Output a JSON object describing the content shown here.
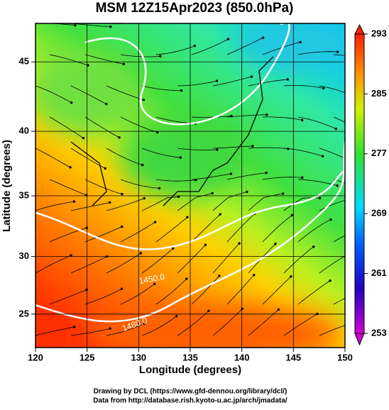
{
  "title": "MSM 12Z15Apr2023 (850.0hPa)",
  "map": {
    "xlabel": "Longitude (degrees)",
    "ylabel": "Latitude  (degrees)",
    "xlim": [
      120,
      150
    ],
    "ylim": [
      22,
      47.6
    ],
    "xticks": [
      120,
      125,
      130,
      135,
      140,
      145,
      150
    ],
    "yticks": [
      25,
      30,
      35,
      40,
      45
    ],
    "grid": true,
    "contour_labels": [
      "1450.0",
      "1480.0"
    ]
  },
  "colorbar": {
    "lim": [
      253,
      293
    ],
    "ticks": [
      253,
      261,
      269,
      277,
      285,
      293
    ]
  },
  "footer": [
    "Drawing by DCL (https://www.gfd-dennou.org/library/dcl/)",
    "Data from http://database.rish.kyoto-u.ac.jp/arch/jmadata/"
  ]
}
